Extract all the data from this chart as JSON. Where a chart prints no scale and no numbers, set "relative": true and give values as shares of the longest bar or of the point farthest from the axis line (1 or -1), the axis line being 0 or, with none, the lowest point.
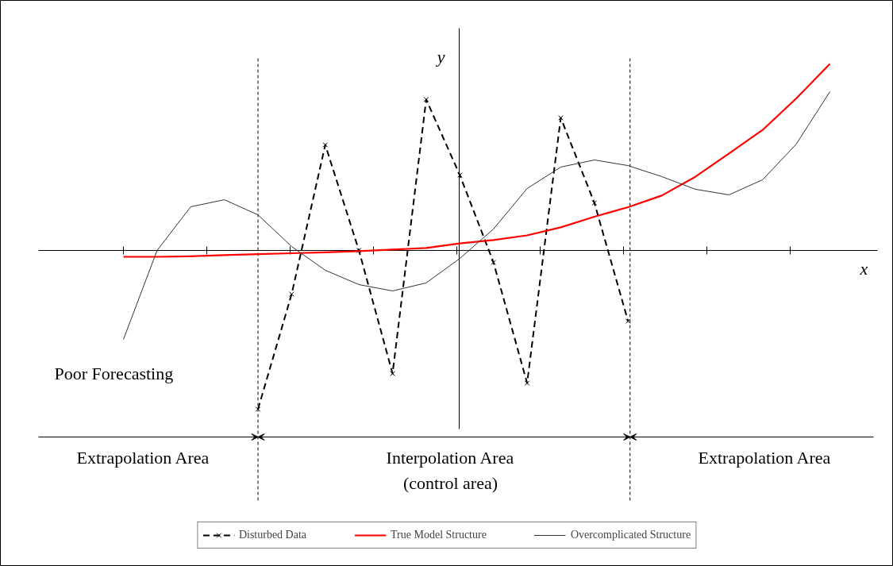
{
  "chart_data": {
    "type": "line",
    "relative": true,
    "xlabel": "x",
    "ylabel": "y",
    "categories": [
      null,
      null,
      null,
      null,
      null,
      null,
      null,
      null,
      null,
      null,
      null,
      null,
      null,
      null,
      null,
      null,
      null,
      null,
      null,
      null,
      null,
      null
    ],
    "series": [
      {
        "name": "Disturbed Data",
        "color": "#000000",
        "marker": "cross",
        "line_style": "dashed",
        "values": [
          null,
          null,
          null,
          null,
          -0.851,
          -0.234,
          0.566,
          0,
          -0.66,
          0.809,
          0.404,
          -0.064,
          -0.711,
          0.711,
          0.255,
          -0.379,
          null,
          null,
          null,
          null,
          null,
          null
        ]
      },
      {
        "name": "True Model Structure",
        "color": "#ff0000",
        "values": [
          -0.034,
          -0.034,
          -0.031,
          -0.025,
          -0.02,
          -0.015,
          -0.01,
          -0.004,
          0.005,
          0.013,
          0.038,
          0.056,
          0.081,
          0.124,
          0.181,
          0.232,
          0.294,
          0.395,
          0.52,
          0.646,
          0.815,
          1.0
        ]
      },
      {
        "name": "Overcomplicated Structure",
        "color": "#333333",
        "values": [
          -0.477,
          0,
          0.234,
          0.272,
          0.191,
          0.021,
          -0.106,
          -0.183,
          -0.217,
          -0.174,
          -0.043,
          0.115,
          0.332,
          0.447,
          0.485,
          0.455,
          0.396,
          0.328,
          0.298,
          0.379,
          0.57,
          0.851
        ]
      }
    ],
    "annotations": [
      "Poor Forecasting",
      "Extrapolation Area",
      "Interpolation Area\n(control area)",
      "Extrapolation Area"
    ],
    "legend": "bottom",
    "grid": false
  }
}
